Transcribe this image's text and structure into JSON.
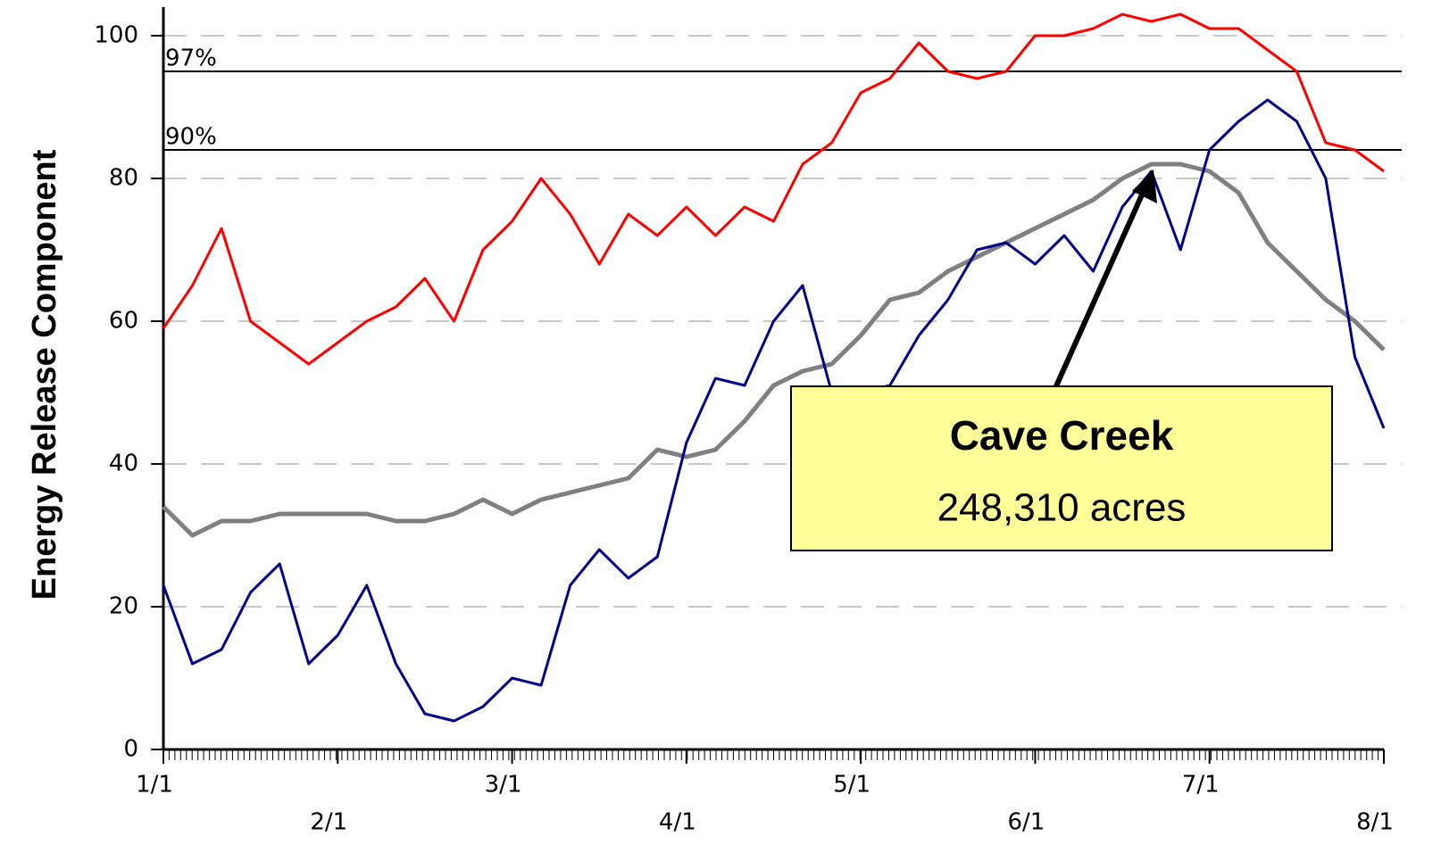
{
  "chart_data": {
    "type": "line",
    "y_label": "Energy Release Component",
    "categories": [
      "1/1",
      null,
      null,
      null,
      null,
      null,
      "2/1",
      null,
      null,
      null,
      null,
      null,
      "3/1",
      null,
      null,
      null,
      null,
      null,
      "4/1",
      null,
      null,
      null,
      null,
      null,
      "5/1",
      null,
      null,
      null,
      null,
      null,
      "6/1",
      null,
      null,
      null,
      null,
      null,
      "7/1",
      null,
      null,
      null,
      null,
      null,
      "8/1"
    ],
    "series": [
      {
        "color": "#ff0000",
        "values": [
          59,
          65,
          73,
          60,
          57,
          54,
          57,
          60,
          62,
          66,
          60,
          70,
          74,
          80,
          75,
          68,
          75,
          72,
          76,
          72,
          76,
          74,
          82,
          85,
          92,
          94,
          99,
          95,
          94,
          95,
          100,
          100,
          101,
          103,
          102,
          103,
          101,
          101,
          98,
          95,
          85,
          84,
          81
        ]
      },
      {
        "color": "#808080",
        "values": [
          34,
          30,
          32,
          32,
          33,
          33,
          33,
          33,
          32,
          32,
          33,
          35,
          33,
          35,
          36,
          37,
          38,
          42,
          41,
          42,
          46,
          51,
          53,
          54,
          58,
          63,
          64,
          67,
          69,
          71,
          73,
          75,
          77,
          80,
          82,
          82,
          81,
          78,
          71,
          67,
          63,
          60,
          56
        ]
      },
      {
        "color": "#00008b",
        "values": [
          23,
          12,
          14,
          22,
          26,
          12,
          16,
          23,
          12,
          5,
          4,
          6,
          10,
          9,
          23,
          28,
          24,
          27,
          43,
          52,
          51,
          60,
          65,
          50,
          50,
          51,
          58,
          63,
          70,
          71,
          68,
          72,
          67,
          76,
          81,
          70,
          84,
          88,
          91,
          88,
          80,
          55,
          45
        ]
      }
    ],
    "reference_lines": [
      {
        "label": "97%",
        "value": 95
      },
      {
        "label": "90%",
        "value": 84
      }
    ],
    "ylim": [
      0,
      104
    ],
    "yticks": [
      0,
      20,
      40,
      60,
      80,
      100
    ],
    "grid": true,
    "annotation": {
      "title": "Cave Creek",
      "text": "248,310 acres"
    }
  }
}
